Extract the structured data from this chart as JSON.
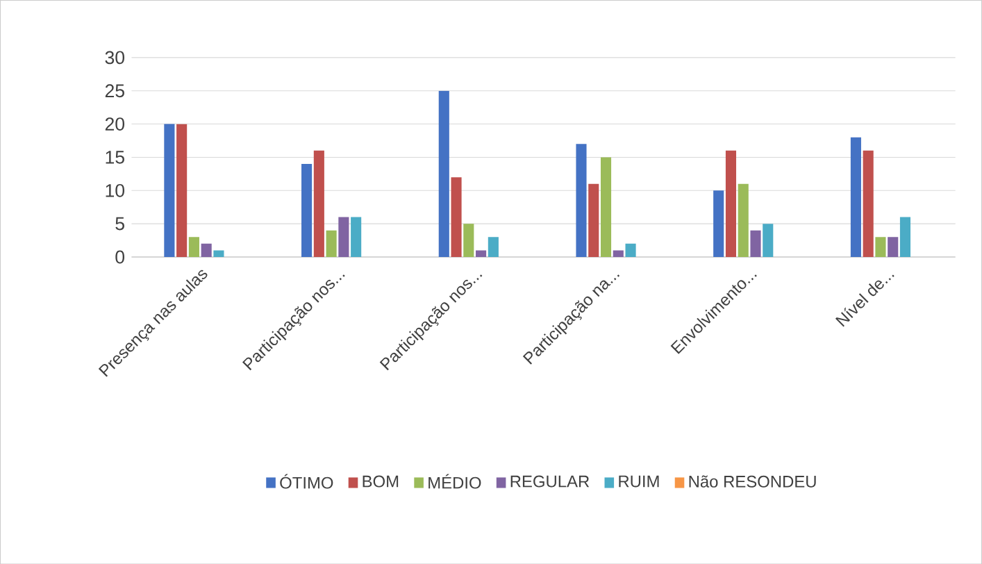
{
  "chart_data": {
    "type": "bar",
    "categories": [
      "Presença nas aulas",
      "Participação nos...",
      "Participação nos...",
      "Participação na...",
      "Envolvimento...",
      "Nível de..."
    ],
    "series": [
      {
        "name": "ÓTIMO",
        "color": "#4472c4",
        "values": [
          20,
          14,
          25,
          17,
          10,
          18
        ]
      },
      {
        "name": "BOM",
        "color": "#c0504d",
        "values": [
          20,
          16,
          12,
          11,
          16,
          16
        ]
      },
      {
        "name": "MÉDIO",
        "color": "#9bbb59",
        "values": [
          3,
          4,
          5,
          15,
          11,
          3
        ]
      },
      {
        "name": "REGULAR",
        "color": "#8064a2",
        "values": [
          2,
          6,
          1,
          1,
          4,
          3
        ]
      },
      {
        "name": "RUIM",
        "color": "#4bacc6",
        "values": [
          1,
          6,
          3,
          2,
          5,
          6
        ]
      },
      {
        "name": "Não RESONDEU",
        "color": "#f79646",
        "values": [
          0,
          0,
          0,
          0,
          0,
          0
        ]
      }
    ],
    "ylim": [
      0,
      30
    ],
    "yticks": [
      0,
      5,
      10,
      15,
      20,
      25,
      30
    ],
    "grid": "y",
    "legend": "bottom"
  }
}
